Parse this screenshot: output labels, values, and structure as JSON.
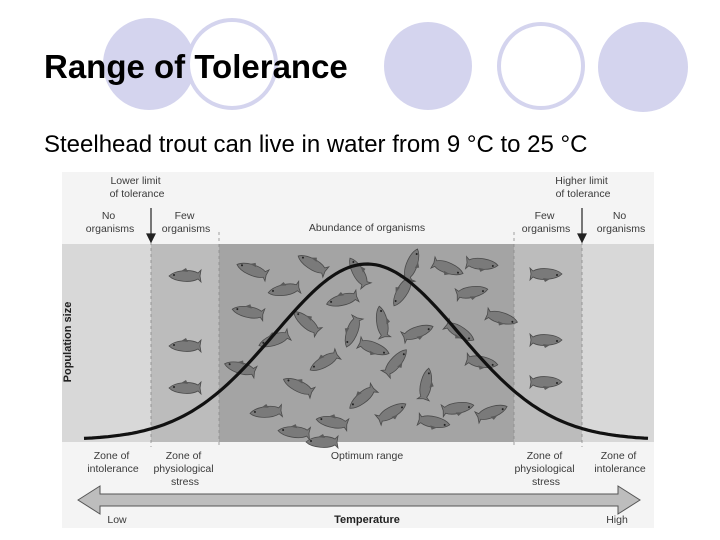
{
  "slide": {
    "title": "Range of Tolerance",
    "subtitle": "Steelhead trout can live in water from 9 °C to 25 °C"
  },
  "colors": {
    "decoration": "#d4d4ee",
    "zone_intolerance": "#d8d8d8",
    "zone_stress": "#bcbcbc",
    "zone_optimum": "#a4a4a4",
    "curve": "#111111"
  },
  "diagram": {
    "top_labels": {
      "lower_limit": [
        "Lower limit",
        "of tolerance"
      ],
      "higher_limit": [
        "Higher limit",
        "of tolerance"
      ],
      "no_organisms_left": [
        "No",
        "organisms"
      ],
      "few_organisms_left": [
        "Few",
        "organisms"
      ],
      "abundance": "Abundance of organisms",
      "few_organisms_right": [
        "Few",
        "organisms"
      ],
      "no_organisms_right": [
        "No",
        "organisms"
      ]
    },
    "y_axis_label": "Population size",
    "zone_labels": {
      "intolerance_left": [
        "Zone of",
        "intolerance"
      ],
      "stress_left": [
        "Zone of",
        "physiological",
        "stress"
      ],
      "optimum": "Optimum range",
      "stress_right": [
        "Zone of",
        "physiological",
        "stress"
      ],
      "intolerance_right": [
        "Zone of",
        "intolerance"
      ]
    },
    "x_axis": {
      "low": "Low",
      "title": "Temperature",
      "high": "High"
    },
    "fish_icon": "fish-icon"
  }
}
